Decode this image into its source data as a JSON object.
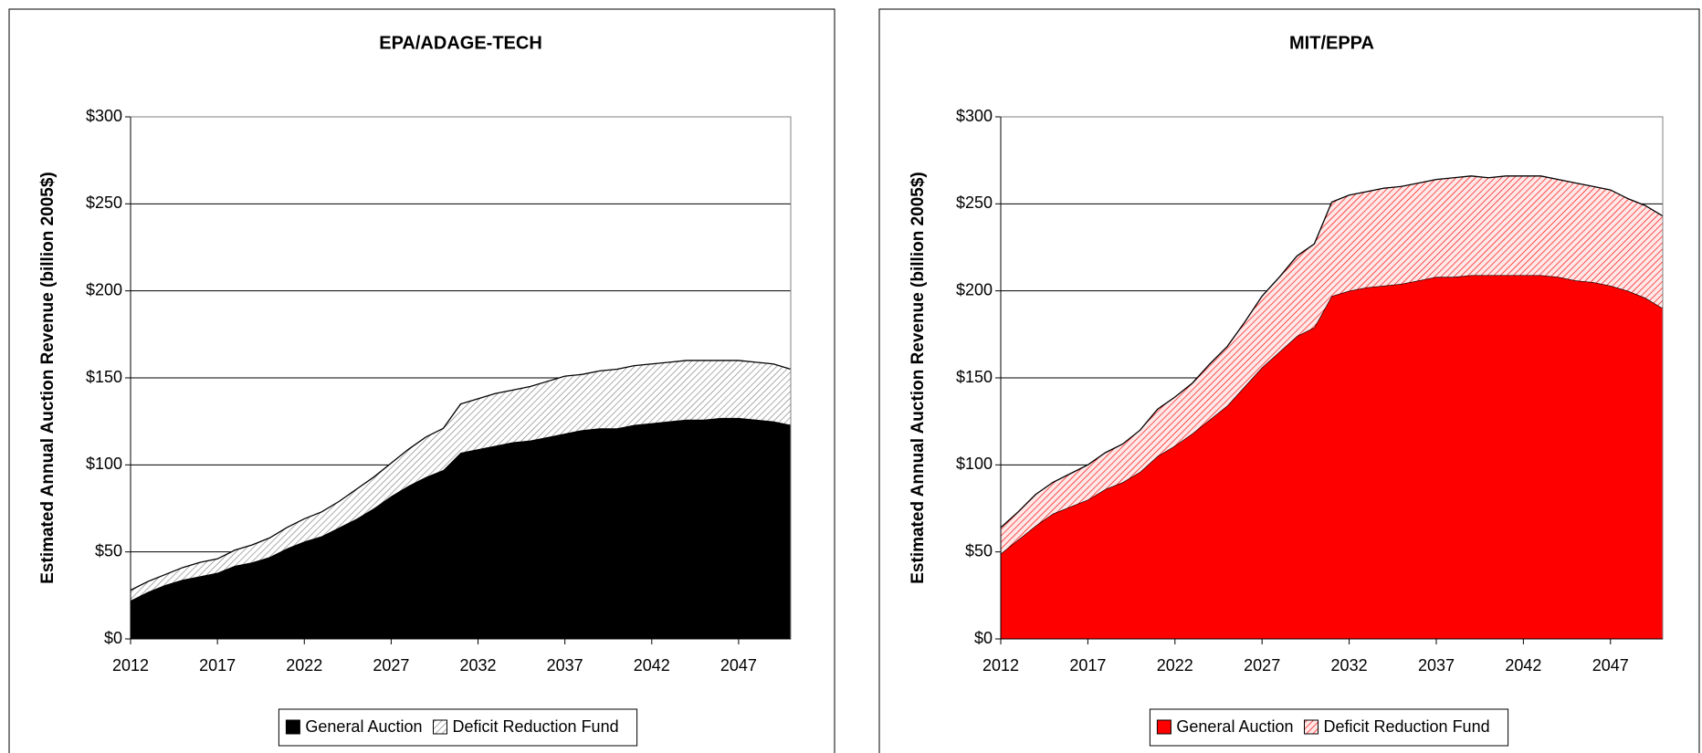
{
  "chart_data": [
    {
      "type": "stacked_area",
      "title": "EPA/ADAGE-TECH",
      "y_label": "Estimated Annual Auction Revenue (billion 2005$)",
      "x": [
        2012,
        2013,
        2014,
        2015,
        2016,
        2017,
        2018,
        2019,
        2020,
        2021,
        2022,
        2023,
        2024,
        2025,
        2026,
        2027,
        2028,
        2029,
        2030,
        2031,
        2032,
        2033,
        2034,
        2035,
        2036,
        2037,
        2038,
        2039,
        2040,
        2041,
        2042,
        2043,
        2044,
        2045,
        2046,
        2047,
        2048,
        2049,
        2050
      ],
      "xlim": [
        2012,
        2050
      ],
      "xticks": [
        2012,
        2017,
        2022,
        2027,
        2032,
        2037,
        2042,
        2047
      ],
      "ylim": [
        0,
        300
      ],
      "yticks": [
        {
          "value": 0,
          "label": "$0"
        },
        {
          "value": 50,
          "label": "$50"
        },
        {
          "value": 100,
          "label": "$100"
        },
        {
          "value": 150,
          "label": "$150"
        },
        {
          "value": 200,
          "label": "$200"
        },
        {
          "value": 250,
          "label": "$250"
        },
        {
          "value": 300,
          "label": "$300"
        }
      ],
      "grid": true,
      "legend": "bottom",
      "series": [
        {
          "name": "General Auction",
          "color": "#000000",
          "fill": "solid",
          "values": [
            22,
            27,
            31,
            34,
            36,
            38,
            42,
            44,
            47,
            52,
            56,
            59,
            64,
            69,
            75,
            82,
            88,
            93,
            97,
            107,
            109,
            111,
            113,
            114,
            116,
            118,
            120,
            121,
            121,
            123,
            124,
            125,
            126,
            126,
            127,
            127,
            126,
            125,
            123
          ]
        },
        {
          "name": "Deficit Reduction Fund",
          "color": "#808080",
          "fill": "hatch",
          "values": [
            6,
            6,
            6,
            7,
            8,
            8,
            9,
            10,
            11,
            12,
            13,
            14,
            15,
            17,
            18,
            19,
            21,
            23,
            24,
            28,
            29,
            30,
            30,
            31,
            32,
            33,
            32,
            33,
            34,
            34,
            34,
            34,
            34,
            34,
            33,
            33,
            33,
            33,
            32
          ]
        }
      ]
    },
    {
      "type": "stacked_area",
      "title": "MIT/EPPA",
      "y_label": "Estimated Annual Auction Revenue (billion 2005$)",
      "x": [
        2012,
        2013,
        2014,
        2015,
        2016,
        2017,
        2018,
        2019,
        2020,
        2021,
        2022,
        2023,
        2024,
        2025,
        2026,
        2027,
        2028,
        2029,
        2030,
        2031,
        2032,
        2033,
        2034,
        2035,
        2036,
        2037,
        2038,
        2039,
        2040,
        2041,
        2042,
        2043,
        2044,
        2045,
        2046,
        2047,
        2048,
        2049,
        2050
      ],
      "xlim": [
        2012,
        2050
      ],
      "xticks": [
        2012,
        2017,
        2022,
        2027,
        2032,
        2037,
        2042,
        2047
      ],
      "ylim": [
        0,
        300
      ],
      "yticks": [
        {
          "value": 0,
          "label": "$0"
        },
        {
          "value": 50,
          "label": "$50"
        },
        {
          "value": 100,
          "label": "$100"
        },
        {
          "value": 150,
          "label": "$150"
        },
        {
          "value": 200,
          "label": "$200"
        },
        {
          "value": 250,
          "label": "$250"
        },
        {
          "value": 300,
          "label": "$300"
        }
      ],
      "grid": true,
      "legend": "bottom",
      "series": [
        {
          "name": "General Auction",
          "color": "#ff0000",
          "fill": "solid",
          "values": [
            49,
            57,
            65,
            72,
            76,
            80,
            86,
            90,
            96,
            105,
            111,
            118,
            126,
            134,
            145,
            156,
            165,
            174,
            179,
            197,
            200,
            202,
            203,
            204,
            206,
            208,
            208,
            209,
            209,
            209,
            209,
            209,
            208,
            206,
            205,
            203,
            200,
            196,
            190
          ]
        },
        {
          "name": "Deficit Reduction Fund",
          "color": "#ff0000",
          "fill": "hatch",
          "values": [
            15,
            16,
            18,
            18,
            19,
            20,
            21,
            22,
            24,
            27,
            28,
            29,
            32,
            34,
            37,
            41,
            43,
            46,
            48,
            54,
            55,
            55,
            56,
            56,
            56,
            56,
            57,
            57,
            56,
            57,
            57,
            57,
            56,
            56,
            55,
            55,
            53,
            53,
            53
          ]
        }
      ]
    }
  ]
}
